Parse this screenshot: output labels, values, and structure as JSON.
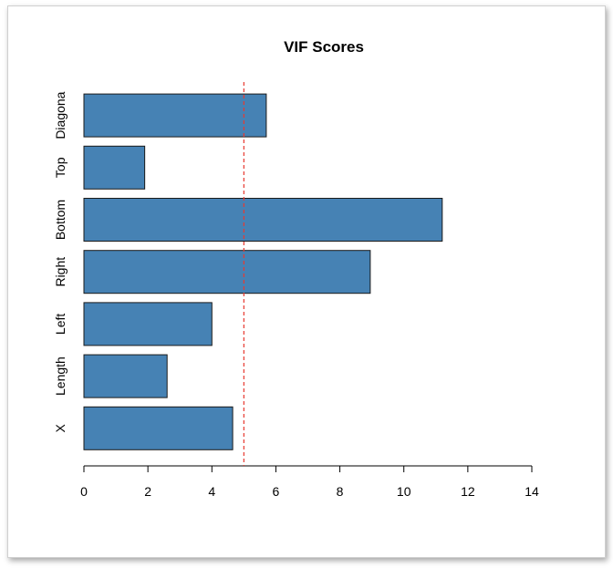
{
  "chart_data": {
    "type": "bar",
    "orientation": "horizontal",
    "title": "VIF Scores",
    "categories": [
      "X",
      "Length",
      "Left",
      "Right",
      "Bottom",
      "Top",
      "Diagona"
    ],
    "values": [
      4.65,
      2.6,
      4.0,
      8.95,
      11.2,
      1.9,
      5.7
    ],
    "xlabel": "",
    "ylabel": "",
    "xlim": [
      0,
      14
    ],
    "xticks": [
      0,
      2,
      4,
      6,
      8,
      10,
      12,
      14
    ],
    "reference_line": {
      "value": 5,
      "color": "#e8392f",
      "style": "dashed"
    },
    "bar_color": "#4682b4",
    "grid": false
  }
}
